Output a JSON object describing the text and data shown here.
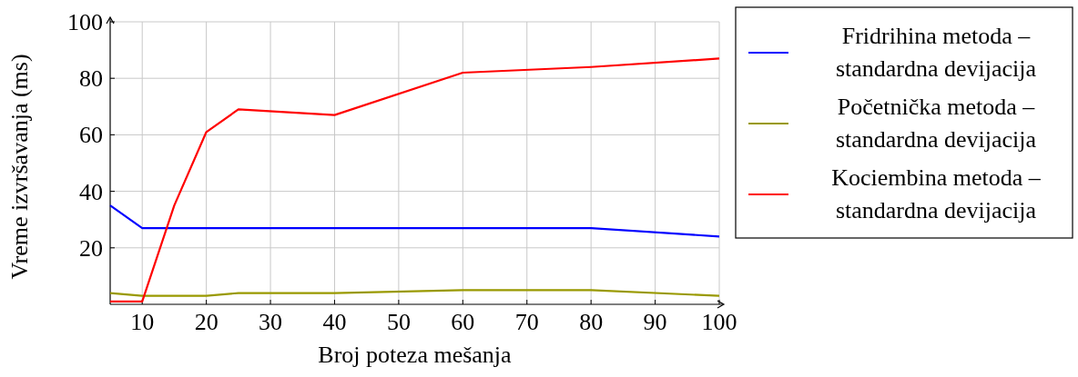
{
  "chart_data": {
    "type": "line",
    "xlabel": "Broj poteza mešanja",
    "ylabel": "Vreme izvršavanja (ms)",
    "series": [
      {
        "name": "Fridrihina metoda – standardna devijacija",
        "color": "#0000ff",
        "x": [
          5,
          10,
          20,
          25,
          40,
          60,
          80,
          100
        ],
        "values": [
          35,
          27,
          27,
          27,
          27,
          27,
          27,
          24
        ]
      },
      {
        "name": "Početnička metoda – standardna devijacija",
        "color": "#999900",
        "x": [
          5,
          10,
          20,
          25,
          40,
          60,
          80,
          100
        ],
        "values": [
          4,
          3,
          3,
          4,
          4,
          5,
          5,
          3
        ]
      },
      {
        "name": "Kociembina metoda – standardna devijacija",
        "color": "#ff0000",
        "x": [
          5,
          10,
          15,
          20,
          25,
          40,
          60,
          80,
          100
        ],
        "values": [
          1,
          1,
          35,
          61,
          69,
          67,
          82,
          84,
          87
        ]
      }
    ],
    "xlim": [
      5,
      100
    ],
    "xticks": [
      10,
      20,
      30,
      40,
      50,
      60,
      70,
      80,
      90,
      100
    ],
    "ylim": [
      0,
      100
    ],
    "yticks": [
      20,
      40,
      60,
      80,
      100
    ],
    "grid": true,
    "legend": "right",
    "marker": "none",
    "line_style": "solid"
  }
}
